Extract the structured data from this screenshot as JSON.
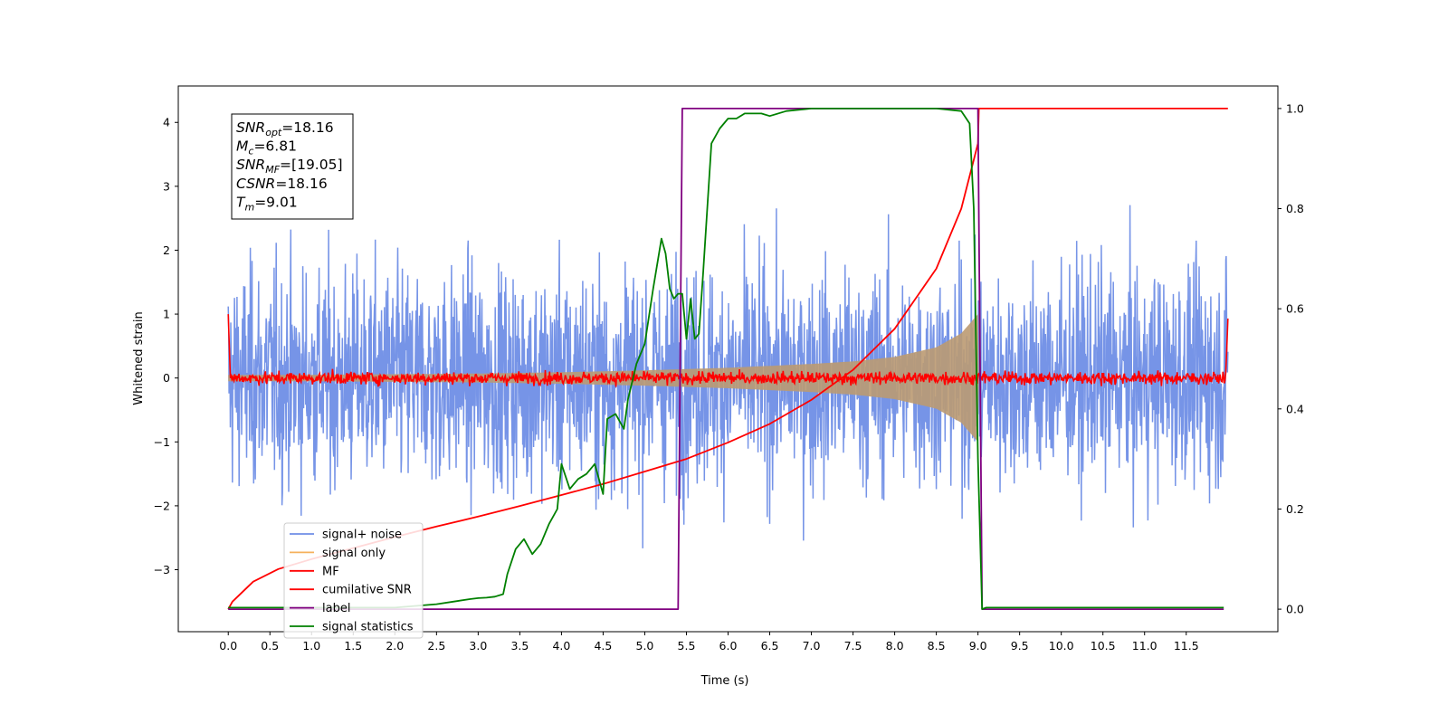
{
  "chart_data": {
    "type": "line",
    "title": "",
    "xlabel": "Time (s)",
    "ylabel": "Whitened strain",
    "xlim": [
      -0.6,
      12.6
    ],
    "ylim": [
      -3.97,
      4.57
    ],
    "y2lim": [
      -0.045,
      1.045
    ],
    "x_ticks": [
      0.0,
      0.5,
      1.0,
      1.5,
      2.0,
      2.5,
      3.0,
      3.5,
      4.0,
      4.5,
      5.0,
      5.5,
      6.0,
      6.5,
      7.0,
      7.5,
      8.0,
      8.5,
      9.0,
      9.5,
      10.0,
      10.5,
      11.0,
      11.5
    ],
    "x_tick_labels": [
      "0.0",
      "0.5",
      "1.0",
      "1.5",
      "2.0",
      "2.5",
      "3.0",
      "3.5",
      "4.0",
      "4.5",
      "5.0",
      "5.5",
      "6.0",
      "6.5",
      "7.0",
      "7.5",
      "8.0",
      "8.5",
      "9.0",
      "9.5",
      "10.0",
      "10.5",
      "11.0",
      "11.5"
    ],
    "y_ticks": [
      -3,
      -2,
      -1,
      0,
      1,
      2,
      3,
      4
    ],
    "y_tick_labels": [
      "−3",
      "−2",
      "−1",
      "0",
      "1",
      "2",
      "3",
      "4"
    ],
    "y2_ticks": [
      0.0,
      0.2,
      0.4,
      0.6,
      0.8,
      1.0
    ],
    "y2_tick_labels": [
      "0.0",
      "0.2",
      "0.4",
      "0.6",
      "0.8",
      "1.0"
    ],
    "grid": false,
    "legend_position": "lower-left",
    "annotation": {
      "lines": [
        {
          "main": "SNR",
          "sub": "opt",
          "rest": "=18.16"
        },
        {
          "main": "M",
          "sub": "c",
          "rest": "=6.81"
        },
        {
          "main": "SNR",
          "sub": "MF",
          "rest": "=[19.05]"
        },
        {
          "main": "CSNR",
          "sub": "",
          "rest": "=18.16"
        },
        {
          "main": "T",
          "sub": "m",
          "rest": "=9.01"
        }
      ]
    },
    "series": [
      {
        "name": "signal+ noise",
        "color": "#6f8ee6",
        "axis": "left",
        "kind": "noise",
        "x_range": [
          0.0,
          12.0
        ],
        "noise_sd": 0.85,
        "peak_range": [
          -2.9,
          3.7
        ]
      },
      {
        "name": "signal only",
        "color": "#f5b15c",
        "axis": "left",
        "kind": "chirp_envelope",
        "x": [
          0.0,
          1.0,
          2.0,
          3.0,
          4.0,
          5.0,
          6.0,
          7.0,
          7.5,
          8.0,
          8.5,
          8.8,
          9.0,
          9.01
        ],
        "amplitude": [
          0.05,
          0.05,
          0.06,
          0.07,
          0.09,
          0.12,
          0.16,
          0.22,
          0.26,
          0.33,
          0.48,
          0.7,
          1.0,
          0.0
        ]
      },
      {
        "name": "MF",
        "color": "#ff0000",
        "axis": "left",
        "kind": "noise_baseline",
        "x_range": [
          0.0,
          12.0
        ],
        "baseline": 0.0,
        "noise_sd": 0.05,
        "edge_values": [
          1.0,
          0.93
        ]
      },
      {
        "name": "cumilative SNR",
        "color": "#ff0000",
        "axis": "right",
        "x": [
          0.0,
          0.05,
          0.3,
          0.6,
          1.0,
          1.5,
          2.0,
          2.5,
          3.0,
          3.5,
          4.0,
          4.5,
          5.0,
          5.5,
          6.0,
          6.5,
          7.0,
          7.5,
          8.0,
          8.5,
          8.8,
          9.0,
          9.01,
          9.02,
          12.0
        ],
        "y": [
          0.0,
          0.015,
          0.055,
          0.08,
          0.1,
          0.122,
          0.144,
          0.165,
          0.185,
          0.206,
          0.228,
          0.25,
          0.275,
          0.3,
          0.333,
          0.37,
          0.418,
          0.478,
          0.56,
          0.68,
          0.8,
          0.93,
          1.0,
          1.0,
          1.0
        ]
      },
      {
        "name": "label",
        "color": "#800080",
        "axis": "right",
        "x": [
          0.0,
          5.4,
          5.45,
          9.0,
          9.05,
          11.95
        ],
        "y": [
          0.0,
          0.0,
          1.0,
          1.0,
          0.0,
          0.0
        ]
      },
      {
        "name": "signal statistics",
        "color": "#008000",
        "axis": "right",
        "x": [
          0.0,
          0.5,
          1.0,
          1.5,
          2.0,
          2.5,
          2.7,
          2.9,
          3.0,
          3.1,
          3.2,
          3.3,
          3.35,
          3.45,
          3.55,
          3.65,
          3.75,
          3.85,
          3.95,
          4.0,
          4.1,
          4.2,
          4.3,
          4.4,
          4.5,
          4.55,
          4.65,
          4.75,
          4.8,
          4.9,
          5.0,
          5.1,
          5.2,
          5.25,
          5.3,
          5.35,
          5.4,
          5.45,
          5.5,
          5.55,
          5.6,
          5.65,
          5.7,
          5.75,
          5.8,
          5.9,
          6.0,
          6.1,
          6.2,
          6.3,
          6.4,
          6.5,
          6.7,
          7.0,
          7.5,
          8.0,
          8.5,
          8.8,
          8.9,
          8.95,
          9.0,
          9.05,
          9.1,
          11.95
        ],
        "y": [
          0.003,
          0.003,
          0.003,
          0.003,
          0.003,
          0.01,
          0.015,
          0.02,
          0.022,
          0.023,
          0.025,
          0.03,
          0.07,
          0.12,
          0.14,
          0.11,
          0.13,
          0.17,
          0.2,
          0.29,
          0.24,
          0.26,
          0.27,
          0.29,
          0.23,
          0.38,
          0.39,
          0.36,
          0.42,
          0.49,
          0.53,
          0.64,
          0.74,
          0.71,
          0.64,
          0.62,
          0.63,
          0.63,
          0.54,
          0.62,
          0.54,
          0.55,
          0.67,
          0.8,
          0.93,
          0.96,
          0.98,
          0.98,
          0.99,
          0.99,
          0.99,
          0.985,
          0.995,
          1.0,
          1.0,
          1.0,
          1.0,
          0.995,
          0.97,
          0.8,
          0.3,
          0.0,
          0.003,
          0.003
        ]
      }
    ]
  }
}
